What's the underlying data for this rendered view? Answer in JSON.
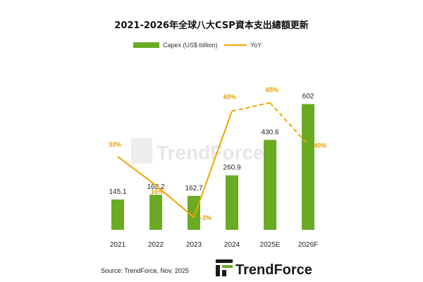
{
  "colors": {
    "bar": "#6aab23",
    "line": "#f0a500",
    "yoy_text": "#e89a00",
    "text": "#222222",
    "watermark": "#e6e6e6"
  },
  "chart_data": {
    "type": "bar",
    "title": "2021-2026年全球八大CSP資本支出總額更新",
    "categories": [
      "2021",
      "2022",
      "2023",
      "2024",
      "2025E",
      "2026F"
    ],
    "series": [
      {
        "name": "Capex (US$ billion)",
        "type": "bar",
        "values": [
          145.1,
          168.2,
          162.7,
          260.9,
          430.6,
          602
        ],
        "labels": [
          "145.1",
          "168.2",
          "162.7",
          "260.9",
          "430.6",
          "602"
        ]
      },
      {
        "name": "YoY",
        "type": "line",
        "values": [
          33,
          16,
          -3,
          60,
          65,
          40
        ],
        "labels": [
          "33%",
          "16%",
          "-3%",
          "60%",
          "65%",
          "40%"
        ],
        "dashed_from_index": 3
      }
    ],
    "legend_position": "top-center",
    "grid": false
  },
  "source": "Source: TrendForce, Nov. 2025",
  "logo": {
    "text": "TrendForce"
  },
  "watermark": {
    "text": "TrendForce"
  }
}
